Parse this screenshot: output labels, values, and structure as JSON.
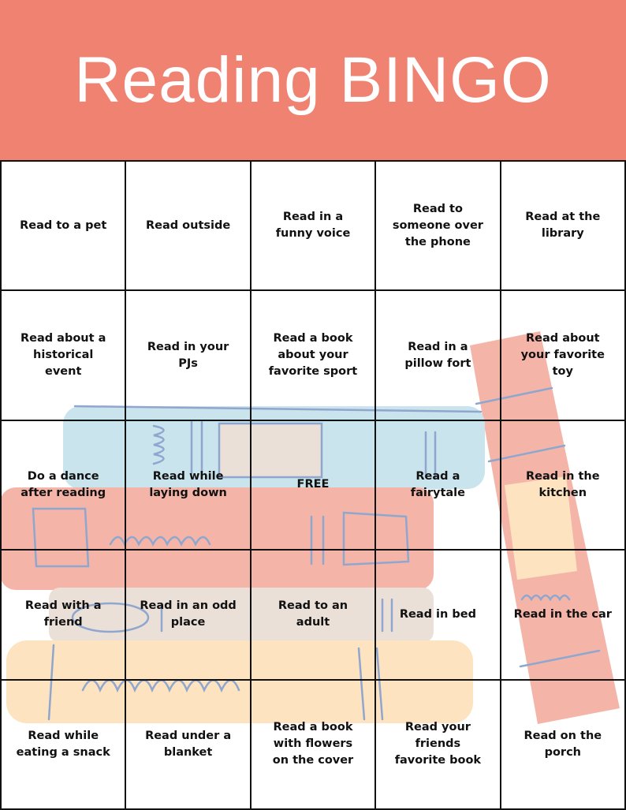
{
  "title": "Reading BINGO",
  "grid": {
    "rows": [
      [
        "Read to a pet",
        "Read outside",
        "Read in a funny voice",
        "Read to someone over the phone",
        "Read at the library"
      ],
      [
        "Read about a historical event",
        "Read in your PJs",
        "Read a book about your favorite sport",
        "Read in a pillow fort",
        "Read about your favorite toy"
      ],
      [
        "Do a dance after reading",
        "Read while laying down",
        "FREE",
        "Read a fairytale",
        "Read in the kitchen"
      ],
      [
        "Read with a friend",
        "Read in an odd place",
        "Read to an adult",
        "Read in bed",
        "Read in the car"
      ],
      [
        "Read while eating a snack",
        "Read under a blanket",
        "Read a book with flowers on the cover",
        "Read your friends favorite book",
        "Read on the porch"
      ]
    ]
  }
}
